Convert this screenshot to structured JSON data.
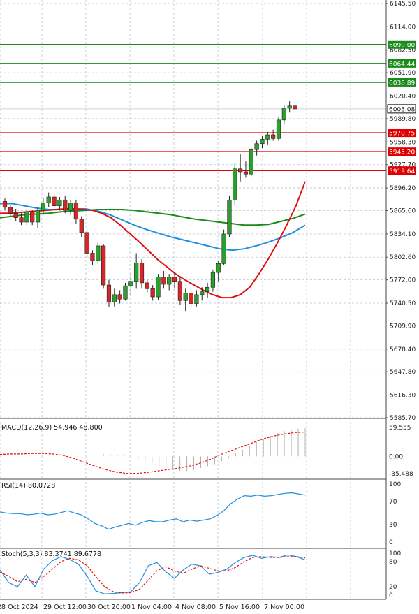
{
  "chart_data": {
    "type": "candlestick",
    "x_labels": [
      "28 Oct 2024",
      "29 Oct 12:00",
      "30 Oct 20:00",
      "1 Nov 04:00",
      "4 Nov 08:00",
      "5 Nov 16:00",
      "7 Nov 00:00"
    ],
    "price_axis": {
      "ticks": [
        "6145.50",
        "6114.00",
        "6082.50",
        "6051.90",
        "6020.40",
        "5989.80",
        "5958.30",
        "5927.70",
        "5896.20",
        "5865.60",
        "5834.10",
        "5802.60",
        "5772.00",
        "5740.50",
        "5709.90",
        "5678.40",
        "5647.80",
        "5616.30",
        "5585.70"
      ],
      "ylim": [
        5585.7,
        6145.5
      ],
      "current_price": "6003.08"
    },
    "horizontal_levels": [
      {
        "value": 6090.0,
        "label": "6090.00",
        "color": "#1a8a1a"
      },
      {
        "value": 6064.44,
        "label": "6064.44",
        "color": "#1a8a1a"
      },
      {
        "value": 6038.89,
        "label": "6038.89",
        "color": "#1a8a1a"
      },
      {
        "value": 5970.75,
        "label": "5970.75",
        "color": "#e00000"
      },
      {
        "value": 5945.2,
        "label": "5945.20",
        "color": "#e00000"
      },
      {
        "value": 5919.64,
        "label": "5919.64",
        "color": "#e00000"
      }
    ],
    "colors": {
      "up": "#2ca02c",
      "down": "#d62728",
      "ma_red": "#e01010",
      "ma_green": "#1a8a1a",
      "ma_blue": "#1f8ee0",
      "grid": "#b8c4d0"
    },
    "candles": [
      [
        5878,
        5882,
        5866,
        5870
      ],
      [
        5870,
        5873,
        5858,
        5862
      ],
      [
        5862,
        5868,
        5852,
        5856
      ],
      [
        5856,
        5862,
        5846,
        5850
      ],
      [
        5850,
        5868,
        5846,
        5864
      ],
      [
        5864,
        5866,
        5846,
        5850
      ],
      [
        5850,
        5870,
        5842,
        5866
      ],
      [
        5866,
        5882,
        5860,
        5876
      ],
      [
        5876,
        5890,
        5870,
        5884
      ],
      [
        5884,
        5888,
        5868,
        5872
      ],
      [
        5872,
        5884,
        5866,
        5880
      ],
      [
        5880,
        5886,
        5862,
        5866
      ],
      [
        5866,
        5880,
        5860,
        5876
      ],
      [
        5876,
        5880,
        5848,
        5854
      ],
      [
        5854,
        5858,
        5830,
        5836
      ],
      [
        5836,
        5840,
        5802,
        5808
      ],
      [
        5808,
        5812,
        5792,
        5798
      ],
      [
        5798,
        5822,
        5794,
        5818
      ],
      [
        5818,
        5820,
        5760,
        5765
      ],
      [
        5765,
        5772,
        5735,
        5742
      ],
      [
        5742,
        5760,
        5736,
        5752
      ],
      [
        5752,
        5758,
        5740,
        5746
      ],
      [
        5746,
        5768,
        5744,
        5764
      ],
      [
        5764,
        5780,
        5750,
        5770
      ],
      [
        5770,
        5808,
        5760,
        5795
      ],
      [
        5795,
        5800,
        5760,
        5768
      ],
      [
        5768,
        5772,
        5755,
        5760
      ],
      [
        5760,
        5765,
        5744,
        5749
      ],
      [
        5749,
        5780,
        5745,
        5776
      ],
      [
        5776,
        5784,
        5760,
        5766
      ],
      [
        5766,
        5780,
        5758,
        5776
      ],
      [
        5776,
        5782,
        5760,
        5770
      ],
      [
        5770,
        5776,
        5738,
        5744
      ],
      [
        5744,
        5760,
        5730,
        5754
      ],
      [
        5754,
        5760,
        5734,
        5740
      ],
      [
        5740,
        5758,
        5736,
        5752
      ],
      [
        5752,
        5762,
        5744,
        5756
      ],
      [
        5756,
        5768,
        5748,
        5762
      ],
      [
        5762,
        5786,
        5756,
        5782
      ],
      [
        5782,
        5798,
        5770,
        5794
      ],
      [
        5794,
        5840,
        5792,
        5834
      ],
      [
        5834,
        5886,
        5830,
        5880
      ],
      [
        5880,
        5930,
        5872,
        5922
      ],
      [
        5922,
        5942,
        5905,
        5918
      ],
      [
        5918,
        5932,
        5910,
        5915
      ],
      [
        5915,
        5950,
        5912,
        5948
      ],
      [
        5948,
        5960,
        5940,
        5956
      ],
      [
        5956,
        5966,
        5950,
        5962
      ],
      [
        5962,
        5972,
        5955,
        5968
      ],
      [
        5968,
        5975,
        5960,
        5963
      ],
      [
        5963,
        5992,
        5960,
        5988
      ],
      [
        5988,
        6008,
        5982,
        6004
      ],
      [
        6004,
        6014,
        5998,
        6007
      ],
      [
        6007,
        6010,
        5998,
        6003
      ]
    ],
    "ma_red": [
      5862,
      5862,
      5863,
      5864,
      5865,
      5866,
      5867,
      5868,
      5868,
      5867,
      5866,
      5862,
      5856,
      5846,
      5835,
      5824,
      5812,
      5800,
      5790,
      5780,
      5772,
      5765,
      5758,
      5752,
      5748,
      5748,
      5752,
      5762,
      5780,
      5800,
      5822,
      5846,
      5872,
      5905
    ],
    "ma_green": [
      5856,
      5858,
      5860,
      5861,
      5862,
      5864,
      5865,
      5866,
      5867,
      5867,
      5867,
      5866,
      5864,
      5862,
      5860,
      5857,
      5854,
      5852,
      5850,
      5848,
      5846,
      5846,
      5847,
      5851,
      5855,
      5861
    ],
    "ma_blue": [
      5875,
      5875,
      5872,
      5869,
      5867,
      5867,
      5868,
      5868,
      5865,
      5860,
      5853,
      5846,
      5840,
      5835,
      5830,
      5826,
      5822,
      5818,
      5814,
      5812,
      5814,
      5818,
      5823,
      5829,
      5836,
      5846
    ],
    "indicators": {
      "macd": {
        "label": "MACD(12,26,9) 54.946 48.800",
        "ticks": [
          "59.555",
          "0.00",
          "-35.488"
        ],
        "ylim": [
          -35.488,
          59.555
        ],
        "hist": [
          5,
          4,
          3,
          2,
          0,
          -3,
          -8,
          -14,
          -20,
          -24,
          -28,
          -30,
          -30,
          -28,
          -24,
          -20,
          -16,
          -10,
          -4,
          6,
          14,
          22,
          30,
          36,
          42,
          48,
          52,
          55,
          57,
          58
        ],
        "signal": [
          4,
          5,
          5,
          6,
          6,
          5,
          2,
          -4,
          -12,
          -20,
          -27,
          -32,
          -35,
          -35,
          -33,
          -30,
          -27,
          -24,
          -20,
          -14,
          -6,
          4,
          12,
          20,
          28,
          36,
          42,
          46,
          49,
          50
        ]
      },
      "rsi": {
        "label": "RSI(14) 80.0728",
        "ticks": [
          "100",
          "70",
          "30",
          "0"
        ],
        "ylim": [
          0,
          100
        ],
        "values": [
          52,
          50,
          49,
          49,
          47,
          48,
          50,
          47,
          48,
          51,
          54,
          50,
          47,
          40,
          32,
          28,
          22,
          26,
          29,
          32,
          29,
          34,
          37,
          35,
          35,
          38,
          40,
          35,
          38,
          36,
          38,
          40,
          46,
          54,
          66,
          74,
          80,
          79,
          81,
          79,
          80,
          82,
          84,
          85,
          83,
          81
        ]
      },
      "stoch": {
        "label": "Stoch(5,3,3) 83.3741 89.6778",
        "ticks": [
          "100",
          "80",
          "20",
          "0"
        ],
        "ylim": [
          0,
          100
        ],
        "k": [
          60,
          30,
          20,
          48,
          20,
          62,
          82,
          92,
          85,
          74,
          45,
          10,
          3,
          4,
          6,
          8,
          30,
          70,
          78,
          56,
          40,
          60,
          74,
          70,
          50,
          54,
          62,
          78,
          90,
          95,
          88,
          92,
          90,
          96,
          92,
          84
        ],
        "d": [
          55,
          45,
          32,
          38,
          30,
          44,
          62,
          80,
          88,
          84,
          70,
          44,
          20,
          8,
          5,
          6,
          14,
          36,
          58,
          68,
          58,
          52,
          62,
          70,
          64,
          58,
          58,
          66,
          80,
          90,
          92,
          90,
          90,
          92,
          92,
          89
        ]
      }
    }
  }
}
